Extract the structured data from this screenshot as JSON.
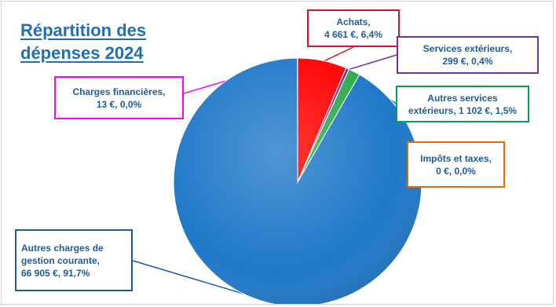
{
  "title": {
    "line1": "Répartition des",
    "line2": "dépenses 2024"
  },
  "chart_data": {
    "type": "pie",
    "title": "Répartition des dépenses 2024",
    "currency": "€",
    "slices": [
      {
        "name": "Achats",
        "value": 4661,
        "percent": 6.4,
        "color": "#ff0000",
        "label_color": "#d9102b",
        "label": [
          "Achats,",
          "4 661 €, 6,4%"
        ]
      },
      {
        "name": "Services extérieurs",
        "value": 299,
        "percent": 0.4,
        "color": "#7030a0",
        "label_color": "#7030a0",
        "label": [
          "Services extérieurs,",
          "299 €, 0,4%"
        ]
      },
      {
        "name": "Autres services extérieurs",
        "value": 1102,
        "percent": 1.5,
        "color": "#2eaa4a",
        "label_color": "#00a050",
        "label": [
          "Autres services",
          "extérieurs, 1 102 €, 1,5%"
        ]
      },
      {
        "name": "Impôts et taxes",
        "value": 0,
        "percent": 0.0,
        "color": "#ed7d31",
        "label_color": "#e36c0a",
        "label": [
          "Impôts et taxes,",
          "0 €, 0,0%"
        ]
      },
      {
        "name": "Autres charges de gestion courante",
        "value": 66905,
        "percent": 91.7,
        "color": "#1f78c8",
        "label_color": "#1f5b9c",
        "label": [
          "Autres charges de",
          "gestion courante,",
          "66 905 €, 91,7%"
        ]
      },
      {
        "name": "Charges financières",
        "value": 13,
        "percent": 0.0,
        "color": "#ff00ff",
        "label_color": "#ff00ff",
        "label": [
          "Charges financières,",
          "13 €, 0,0%"
        ]
      }
    ],
    "legend": "none"
  }
}
